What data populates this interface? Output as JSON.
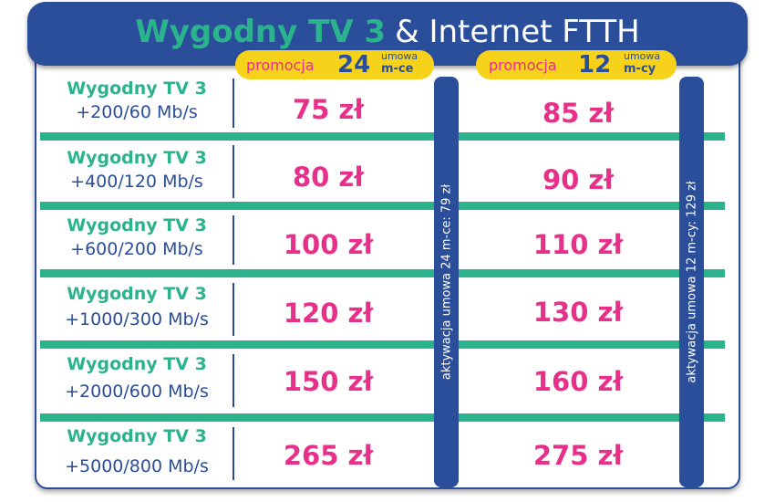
{
  "header": {
    "brand": "Wygodny TV 3",
    "rest": "& Internet FTTH"
  },
  "promos": [
    {
      "word": "promocja",
      "number": "24",
      "umowa": "umowa",
      "term": "m-ce"
    },
    {
      "word": "promocja",
      "number": "12",
      "umowa": "umowa",
      "term": "m-cy"
    }
  ],
  "activation": [
    "aktywacja umowa 24 m-ce: 79 zł",
    "aktywacja umowa 12 m-cy: 129 zł"
  ],
  "rows": [
    {
      "name": "Wygodny TV 3",
      "speed": "+200/60 Mb/s",
      "price24": "75 zł",
      "price12": "85 zł"
    },
    {
      "name": "Wygodny TV 3",
      "speed": "+400/120 Mb/s",
      "price24": "80 zł",
      "price12": "90 zł"
    },
    {
      "name": "Wygodny TV 3",
      "speed": "+600/200 Mb/s",
      "price24": "100 zł",
      "price12": "110 zł"
    },
    {
      "name": "Wygodny TV 3",
      "speed": "+1000/300 Mb/s",
      "price24": "120 zł",
      "price12": "130 zł"
    },
    {
      "name": "Wygodny TV 3",
      "speed": "+2000/600 Mb/s",
      "price24": "150 zł",
      "price12": "160 zł"
    },
    {
      "name": "Wygodny TV 3",
      "speed": "+5000/800 Mb/s",
      "price24": "265 zł",
      "price12": "275 zł"
    }
  ],
  "colors": {
    "navy": "#2b4e9b",
    "green": "#2bb38d",
    "pink": "#e8308a",
    "yellow": "#f6d21a"
  }
}
